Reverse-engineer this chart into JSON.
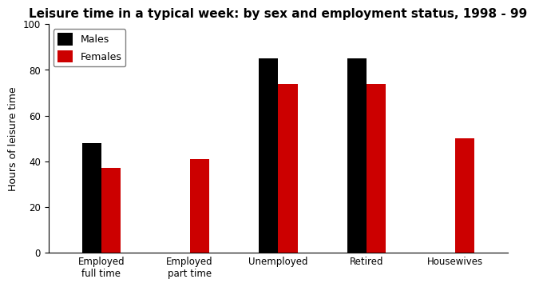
{
  "title": "Leisure time in a typical week: by sex and employment status, 1998 - 99",
  "ylabel": "Hours of leisure time",
  "categories": [
    "Employed\nfull time",
    "Employed\npart time",
    "Unemployed",
    "Retired",
    "Housewives"
  ],
  "males": [
    48,
    0,
    85,
    85,
    0
  ],
  "females": [
    37,
    41,
    74,
    74,
    50
  ],
  "male_color": "#000000",
  "female_color": "#cc0000",
  "ylim": [
    0,
    100
  ],
  "yticks": [
    0,
    20,
    40,
    60,
    80,
    100
  ],
  "legend_labels": [
    "Males",
    "Females"
  ],
  "bar_width": 0.22,
  "title_fontsize": 11,
  "axis_label_fontsize": 9,
  "tick_fontsize": 8.5,
  "legend_fontsize": 9,
  "background_color": "#ffffff"
}
